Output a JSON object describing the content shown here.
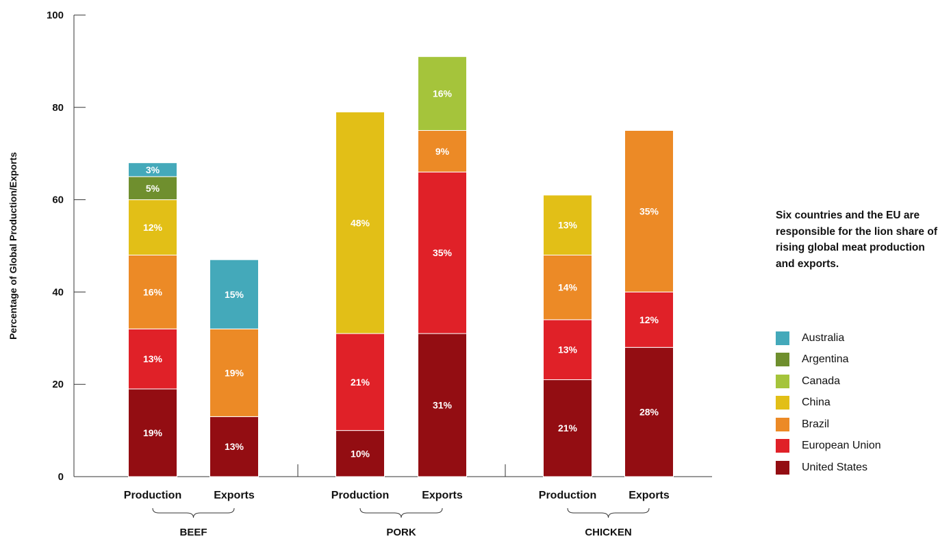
{
  "chart_data": {
    "type": "bar",
    "stacked": true,
    "ylabel": "Percentage of Global Production/Exports",
    "ylim": [
      0,
      100
    ],
    "yticks": [
      0,
      20,
      40,
      60,
      80,
      100
    ],
    "grid": false,
    "legend_placement": "right",
    "note": "Six countries and the EU are responsible for the lion share of rising global meat production and exports.",
    "groups": [
      {
        "name": "BEEF",
        "bars": [
          {
            "label": "Production",
            "segments": [
              {
                "series": "United States",
                "value": 19,
                "label": "19%"
              },
              {
                "series": "European Union",
                "value": 13,
                "label": "13%"
              },
              {
                "series": "Brazil",
                "value": 16,
                "label": "16%"
              },
              {
                "series": "China",
                "value": 12,
                "label": "12%"
              },
              {
                "series": "Argentina",
                "value": 5,
                "label": "5%"
              },
              {
                "series": "Australia",
                "value": 3,
                "label": "3%"
              }
            ]
          },
          {
            "label": "Exports",
            "segments": [
              {
                "series": "United States",
                "value": 13,
                "label": "13%"
              },
              {
                "series": "Brazil",
                "value": 19,
                "label": "19%"
              },
              {
                "series": "Australia",
                "value": 15,
                "label": "15%"
              }
            ]
          }
        ]
      },
      {
        "name": "PORK",
        "bars": [
          {
            "label": "Production",
            "segments": [
              {
                "series": "United States",
                "value": 10,
                "label": "10%"
              },
              {
                "series": "European Union",
                "value": 21,
                "label": "21%"
              },
              {
                "series": "China",
                "value": 48,
                "label": "48%"
              }
            ]
          },
          {
            "label": "Exports",
            "segments": [
              {
                "series": "United States",
                "value": 31,
                "label": "31%"
              },
              {
                "series": "European Union",
                "value": 35,
                "label": "35%"
              },
              {
                "series": "Brazil",
                "value": 9,
                "label": "9%"
              },
              {
                "series": "Canada",
                "value": 16,
                "label": "16%"
              }
            ]
          }
        ]
      },
      {
        "name": "CHICKEN",
        "bars": [
          {
            "label": "Production",
            "segments": [
              {
                "series": "United States",
                "value": 21,
                "label": "21%"
              },
              {
                "series": "European Union",
                "value": 13,
                "label": "13%"
              },
              {
                "series": "Brazil",
                "value": 14,
                "label": "14%"
              },
              {
                "series": "China",
                "value": 13,
                "label": "13%"
              }
            ]
          },
          {
            "label": "Exports",
            "segments": [
              {
                "series": "United States",
                "value": 28,
                "label": "28%"
              },
              {
                "series": "European Union",
                "value": 12,
                "label": "12%"
              },
              {
                "series": "Brazil",
                "value": 35,
                "label": "35%"
              }
            ]
          }
        ]
      }
    ],
    "legend": [
      {
        "name": "Australia",
        "color": "#44A9BA"
      },
      {
        "name": "Argentina",
        "color": "#6F8F2E"
      },
      {
        "name": "Canada",
        "color": "#A5C43B"
      },
      {
        "name": "China",
        "color": "#E2BF17"
      },
      {
        "name": "Brazil",
        "color": "#EC8A26"
      },
      {
        "name": "European Union",
        "color": "#E02128"
      },
      {
        "name": "United States",
        "color": "#930D12"
      }
    ]
  }
}
